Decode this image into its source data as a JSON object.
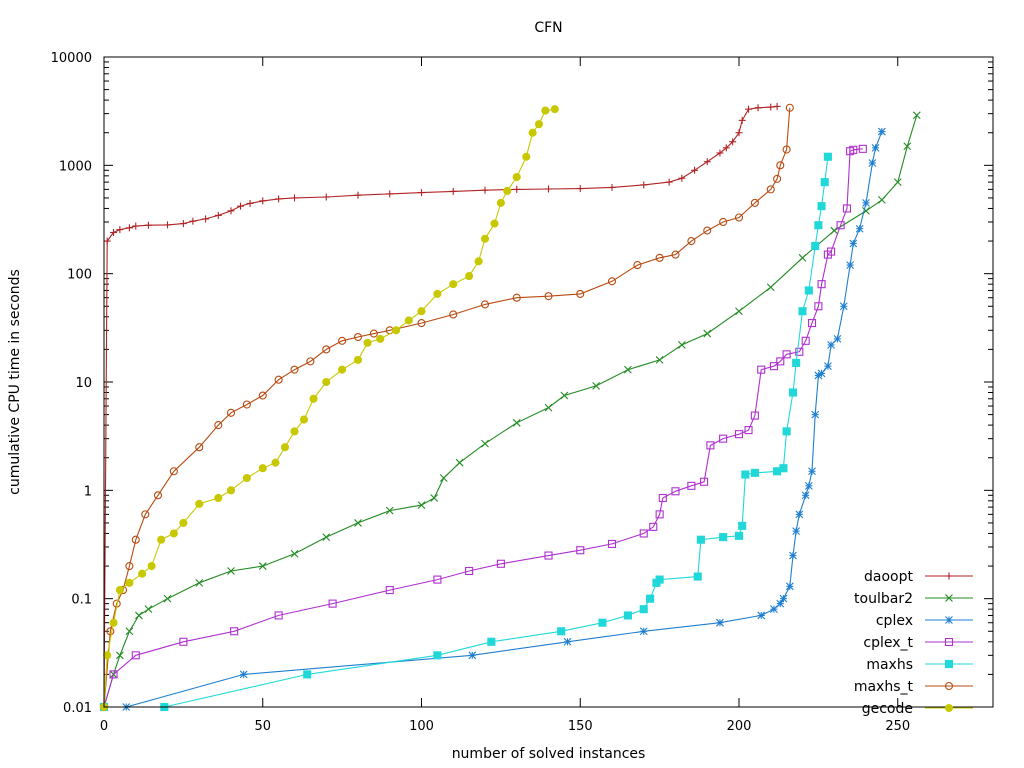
{
  "chart_data": {
    "type": "line",
    "title": "CFN",
    "xlabel": "number of solved instances",
    "ylabel": "cumulative CPU time in seconds",
    "xlim": [
      0,
      280
    ],
    "ylim": [
      0.01,
      10000
    ],
    "yscale": "log",
    "xticks": [
      0,
      50,
      100,
      150,
      200,
      250
    ],
    "yticks": [
      0.01,
      0.1,
      1,
      10,
      100,
      1000,
      10000
    ],
    "ytick_labels": [
      "0.01",
      "0.1",
      "1",
      "10",
      "100",
      "1000",
      "10000"
    ],
    "legend_position": "bottom-right",
    "series": [
      {
        "name": "daoopt",
        "color": "#b22222",
        "marker": "plus",
        "points": [
          [
            0,
            0.01
          ],
          [
            1,
            200
          ],
          [
            3,
            240
          ],
          [
            5,
            255
          ],
          [
            8,
            265
          ],
          [
            10,
            275
          ],
          [
            14,
            280
          ],
          [
            20,
            282
          ],
          [
            25,
            290
          ],
          [
            28,
            305
          ],
          [
            32,
            320
          ],
          [
            36,
            345
          ],
          [
            40,
            380
          ],
          [
            43,
            420
          ],
          [
            46,
            445
          ],
          [
            50,
            470
          ],
          [
            55,
            490
          ],
          [
            60,
            500
          ],
          [
            70,
            510
          ],
          [
            80,
            530
          ],
          [
            90,
            545
          ],
          [
            100,
            560
          ],
          [
            110,
            575
          ],
          [
            120,
            590
          ],
          [
            130,
            600
          ],
          [
            140,
            605
          ],
          [
            150,
            610
          ],
          [
            160,
            625
          ],
          [
            170,
            660
          ],
          [
            178,
            700
          ],
          [
            182,
            760
          ],
          [
            186,
            900
          ],
          [
            190,
            1080
          ],
          [
            194,
            1300
          ],
          [
            196,
            1450
          ],
          [
            198,
            1650
          ],
          [
            200,
            2000
          ],
          [
            201,
            2600
          ],
          [
            203,
            3300
          ],
          [
            206,
            3400
          ],
          [
            210,
            3450
          ],
          [
            212,
            3500
          ]
        ]
      },
      {
        "name": "toulbar2",
        "color": "#228b22",
        "marker": "x",
        "points": [
          [
            0,
            0.01
          ],
          [
            3,
            0.02
          ],
          [
            5,
            0.03
          ],
          [
            8,
            0.05
          ],
          [
            11,
            0.07
          ],
          [
            14,
            0.08
          ],
          [
            20,
            0.1
          ],
          [
            30,
            0.14
          ],
          [
            40,
            0.18
          ],
          [
            50,
            0.2
          ],
          [
            60,
            0.26
          ],
          [
            70,
            0.37
          ],
          [
            80,
            0.5
          ],
          [
            90,
            0.65
          ],
          [
            100,
            0.73
          ],
          [
            104,
            0.85
          ],
          [
            107,
            1.3
          ],
          [
            112,
            1.8
          ],
          [
            120,
            2.7
          ],
          [
            130,
            4.2
          ],
          [
            140,
            5.8
          ],
          [
            145,
            7.5
          ],
          [
            155,
            9.2
          ],
          [
            165,
            13
          ],
          [
            175,
            16
          ],
          [
            182,
            22
          ],
          [
            190,
            28
          ],
          [
            200,
            45
          ],
          [
            210,
            75
          ],
          [
            220,
            140
          ],
          [
            230,
            250
          ],
          [
            240,
            380
          ],
          [
            245,
            480
          ],
          [
            250,
            700
          ],
          [
            253,
            1500
          ],
          [
            256,
            2900
          ]
        ]
      },
      {
        "name": "cplex",
        "color": "#1f7fd0",
        "marker": "star",
        "points": [
          [
            0,
            0.01
          ],
          [
            7,
            0.01
          ],
          [
            44,
            0.02
          ],
          [
            116,
            0.03
          ],
          [
            146,
            0.04
          ],
          [
            170,
            0.05
          ],
          [
            194,
            0.06
          ],
          [
            207,
            0.07
          ],
          [
            211,
            0.08
          ],
          [
            213,
            0.09
          ],
          [
            214,
            0.1
          ],
          [
            216,
            0.13
          ],
          [
            217,
            0.25
          ],
          [
            218,
            0.42
          ],
          [
            219,
            0.6
          ],
          [
            221,
            0.9
          ],
          [
            222,
            1.1
          ],
          [
            223,
            1.5
          ],
          [
            224,
            5
          ],
          [
            225,
            11.5
          ],
          [
            226,
            12
          ],
          [
            228,
            14
          ],
          [
            229,
            22
          ],
          [
            231,
            25
          ],
          [
            233,
            50
          ],
          [
            235,
            120
          ],
          [
            236,
            190
          ],
          [
            238,
            260
          ],
          [
            240,
            450
          ],
          [
            242,
            1050
          ],
          [
            243,
            1450
          ],
          [
            245,
            2050
          ]
        ]
      },
      {
        "name": "cplex_t",
        "color": "#b030d0",
        "marker": "square",
        "points": [
          [
            0,
            0.01
          ],
          [
            3,
            0.02
          ],
          [
            10,
            0.03
          ],
          [
            25,
            0.04
          ],
          [
            41,
            0.05
          ],
          [
            55,
            0.07
          ],
          [
            72,
            0.09
          ],
          [
            90,
            0.12
          ],
          [
            105,
            0.15
          ],
          [
            115,
            0.18
          ],
          [
            125,
            0.21
          ],
          [
            140,
            0.25
          ],
          [
            150,
            0.28
          ],
          [
            160,
            0.32
          ],
          [
            170,
            0.4
          ],
          [
            173,
            0.46
          ],
          [
            175,
            0.6
          ],
          [
            176,
            0.85
          ],
          [
            180,
            0.98
          ],
          [
            185,
            1.1
          ],
          [
            189,
            1.2
          ],
          [
            191,
            2.6
          ],
          [
            195,
            3
          ],
          [
            200,
            3.3
          ],
          [
            203,
            3.6
          ],
          [
            205,
            4.9
          ],
          [
            207,
            13
          ],
          [
            211,
            14
          ],
          [
            213,
            15.5
          ],
          [
            215,
            18
          ],
          [
            219,
            19
          ],
          [
            221,
            24
          ],
          [
            223,
            35
          ],
          [
            225,
            50
          ],
          [
            226,
            80
          ],
          [
            228,
            150
          ],
          [
            229,
            160
          ],
          [
            232,
            280
          ],
          [
            234,
            400
          ],
          [
            235,
            1350
          ],
          [
            236,
            1390
          ],
          [
            239,
            1420
          ]
        ]
      },
      {
        "name": "maxhs",
        "color": "#20d8d8",
        "marker": "filled-square",
        "points": [
          [
            0,
            0.01
          ],
          [
            19,
            0.01
          ],
          [
            64,
            0.02
          ],
          [
            105,
            0.03
          ],
          [
            122,
            0.04
          ],
          [
            144,
            0.05
          ],
          [
            157,
            0.06
          ],
          [
            165,
            0.07
          ],
          [
            170,
            0.08
          ],
          [
            172,
            0.1
          ],
          [
            174,
            0.14
          ],
          [
            175,
            0.15
          ],
          [
            187,
            0.16
          ],
          [
            188,
            0.35
          ],
          [
            195,
            0.37
          ],
          [
            200,
            0.38
          ],
          [
            201,
            0.47
          ],
          [
            202,
            1.4
          ],
          [
            205,
            1.45
          ],
          [
            212,
            1.5
          ],
          [
            214,
            1.6
          ],
          [
            215,
            3.5
          ],
          [
            217,
            8
          ],
          [
            218,
            15
          ],
          [
            220,
            45
          ],
          [
            222,
            70
          ],
          [
            224,
            180
          ],
          [
            225,
            280
          ],
          [
            226,
            420
          ],
          [
            227,
            700
          ],
          [
            228,
            1200
          ]
        ]
      },
      {
        "name": "maxhs_t",
        "color": "#b84a10",
        "marker": "circle",
        "points": [
          [
            0,
            0.01
          ],
          [
            2,
            0.05
          ],
          [
            4,
            0.09
          ],
          [
            6,
            0.12
          ],
          [
            8,
            0.2
          ],
          [
            10,
            0.35
          ],
          [
            13,
            0.6
          ],
          [
            17,
            0.9
          ],
          [
            22,
            1.5
          ],
          [
            30,
            2.5
          ],
          [
            36,
            4
          ],
          [
            40,
            5.2
          ],
          [
            45,
            6.2
          ],
          [
            50,
            7.5
          ],
          [
            55,
            10.5
          ],
          [
            60,
            13
          ],
          [
            65,
            15.5
          ],
          [
            70,
            20
          ],
          [
            75,
            24
          ],
          [
            80,
            26
          ],
          [
            85,
            28
          ],
          [
            90,
            30
          ],
          [
            100,
            35
          ],
          [
            110,
            42
          ],
          [
            120,
            52
          ],
          [
            130,
            60
          ],
          [
            140,
            62
          ],
          [
            150,
            65
          ],
          [
            160,
            85
          ],
          [
            168,
            120
          ],
          [
            175,
            140
          ],
          [
            180,
            150
          ],
          [
            185,
            200
          ],
          [
            190,
            250
          ],
          [
            195,
            300
          ],
          [
            200,
            330
          ],
          [
            205,
            450
          ],
          [
            210,
            600
          ],
          [
            212,
            750
          ],
          [
            213,
            1000
          ],
          [
            215,
            1400
          ],
          [
            216,
            3400
          ]
        ]
      },
      {
        "name": "gecode",
        "color": "#c8c800",
        "marker": "filled-circle",
        "points": [
          [
            0,
            0.01
          ],
          [
            1,
            0.03
          ],
          [
            3,
            0.06
          ],
          [
            5,
            0.12
          ],
          [
            8,
            0.14
          ],
          [
            12,
            0.17
          ],
          [
            15,
            0.2
          ],
          [
            18,
            0.35
          ],
          [
            22,
            0.4
          ],
          [
            25,
            0.5
          ],
          [
            30,
            0.75
          ],
          [
            36,
            0.85
          ],
          [
            40,
            1
          ],
          [
            45,
            1.3
          ],
          [
            50,
            1.6
          ],
          [
            54,
            1.8
          ],
          [
            57,
            2.5
          ],
          [
            60,
            3.5
          ],
          [
            63,
            4.5
          ],
          [
            66,
            7
          ],
          [
            70,
            10
          ],
          [
            75,
            13
          ],
          [
            80,
            16
          ],
          [
            83,
            23
          ],
          [
            87,
            25
          ],
          [
            92,
            30
          ],
          [
            96,
            37
          ],
          [
            100,
            45
          ],
          [
            105,
            65
          ],
          [
            110,
            80
          ],
          [
            115,
            95
          ],
          [
            118,
            130
          ],
          [
            120,
            210
          ],
          [
            123,
            290
          ],
          [
            125,
            450
          ],
          [
            127,
            580
          ],
          [
            130,
            780
          ],
          [
            133,
            1200
          ],
          [
            135,
            2000
          ],
          [
            137,
            2400
          ],
          [
            139,
            3200
          ],
          [
            142,
            3300
          ]
        ]
      }
    ]
  }
}
